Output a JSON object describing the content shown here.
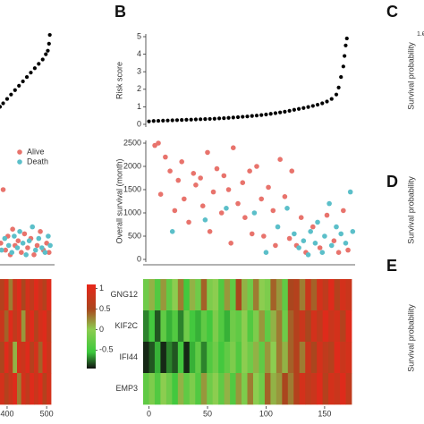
{
  "chart_data": [
    {
      "type": "scatter",
      "x": [
        382,
        390,
        400,
        410,
        420,
        430,
        440,
        450,
        460,
        470,
        480,
        490,
        498,
        503,
        506,
        508
      ],
      "values": [
        1.0,
        1.2,
        1.45,
        1.7,
        1.95,
        2.2,
        2.45,
        2.7,
        2.95,
        3.2,
        3.45,
        3.7,
        4.0,
        4.2,
        4.6,
        5.1
      ],
      "color": "#000000",
      "xlim": [
        382,
        511
      ],
      "ylim": [
        0,
        5
      ]
    },
    {
      "type": "scatter",
      "xlim": [
        382,
        511
      ],
      "ylim": [
        0,
        2500
      ],
      "series": [
        {
          "name": "Alive",
          "color": "#e8736c",
          "x": [
            384,
            390,
            396,
            402,
            408,
            414,
            420,
            428,
            436,
            444,
            452,
            460,
            468,
            476,
            484,
            492,
            500,
            506
          ],
          "values": [
            350,
            1500,
            200,
            500,
            100,
            650,
            300,
            400,
            150,
            550,
            250,
            450,
            100,
            300,
            600,
            200,
            350,
            150
          ]
        },
        {
          "name": "Death",
          "color": "#5bbfc9",
          "x": [
            386,
            394,
            404,
            412,
            418,
            426,
            432,
            440,
            448,
            456,
            464,
            472,
            480,
            488,
            496,
            504,
            509
          ],
          "values": [
            200,
            450,
            300,
            150,
            500,
            250,
            600,
            350,
            100,
            400,
            700,
            200,
            450,
            250,
            150,
            500,
            300
          ]
        }
      ]
    },
    {
      "type": "heatmap",
      "xlim": [
        382,
        511
      ],
      "xticks": [
        400,
        500
      ],
      "values": [
        [
          0.6,
          0.9,
          0.3,
          0.8,
          1,
          0.5,
          0.9,
          0.7,
          1,
          0.8,
          0.6,
          1
        ],
        [
          0.8,
          0.4,
          1,
          0.7,
          0.9,
          0.2,
          0.8,
          1,
          0.6,
          0.9,
          1,
          0.7
        ],
        [
          0.5,
          1,
          0.7,
          0.1,
          0.9,
          0.8,
          1,
          0.6,
          0.9,
          0.4,
          1,
          0.8
        ],
        [
          0.9,
          0.6,
          0.8,
          1,
          0.3,
          0.9,
          0.7,
          1,
          0.8,
          1,
          0.6,
          0.9
        ]
      ]
    },
    {
      "type": "scatter",
      "panel": "B",
      "ylabel": "Risk score",
      "color": "#000000",
      "xlim": [
        -5,
        173
      ],
      "ylim": [
        0,
        5
      ],
      "yticks": [
        0,
        1,
        2,
        3,
        4,
        5
      ],
      "x": [
        0,
        4,
        8,
        12,
        16,
        20,
        24,
        28,
        32,
        36,
        40,
        44,
        48,
        52,
        56,
        60,
        64,
        68,
        72,
        76,
        80,
        84,
        88,
        92,
        96,
        100,
        104,
        108,
        112,
        116,
        120,
        124,
        128,
        132,
        136,
        140,
        144,
        148,
        152,
        156,
        160,
        162,
        164,
        166,
        167,
        168,
        169
      ],
      "values": [
        0.17,
        0.19,
        0.2,
        0.21,
        0.22,
        0.23,
        0.24,
        0.25,
        0.26,
        0.27,
        0.28,
        0.29,
        0.3,
        0.31,
        0.32,
        0.34,
        0.35,
        0.37,
        0.39,
        0.41,
        0.43,
        0.45,
        0.48,
        0.5,
        0.53,
        0.56,
        0.6,
        0.64,
        0.68,
        0.72,
        0.77,
        0.83,
        0.88,
        0.93,
        0.99,
        1.05,
        1.12,
        1.2,
        1.3,
        1.45,
        1.7,
        2.1,
        2.7,
        3.3,
        3.9,
        4.5,
        4.9
      ]
    },
    {
      "type": "scatter",
      "ylabel": "Overall survival (month)",
      "xlim": [
        -5,
        173
      ],
      "ylim": [
        0,
        2500
      ],
      "yticks": [
        0,
        500,
        1000,
        1500,
        2000,
        2500
      ],
      "series": [
        {
          "color": "#e8736c",
          "x": [
            5,
            8,
            10,
            14,
            18,
            22,
            25,
            28,
            30,
            34,
            38,
            40,
            44,
            46,
            50,
            52,
            55,
            58,
            62,
            64,
            68,
            70,
            72,
            76,
            80,
            82,
            86,
            88,
            92,
            96,
            98,
            102,
            106,
            108,
            112,
            116,
            120,
            122,
            126,
            130,
            134,
            140,
            146,
            152,
            158,
            162,
            166,
            170
          ],
          "values": [
            2450,
            2500,
            1400,
            2200,
            1900,
            1050,
            1700,
            2100,
            1300,
            800,
            1850,
            1600,
            1750,
            1150,
            2300,
            600,
            1450,
            1950,
            1000,
            1800,
            1500,
            350,
            2400,
            1200,
            1650,
            900,
            1900,
            550,
            2000,
            1300,
            500,
            1550,
            1050,
            300,
            2150,
            1350,
            450,
            1900,
            300,
            900,
            150,
            700,
            250,
            950,
            400,
            150,
            1050,
            200
          ]
        },
        {
          "color": "#5bbfc9",
          "x": [
            20,
            48,
            66,
            90,
            100,
            110,
            118,
            124,
            128,
            132,
            136,
            138,
            142,
            144,
            148,
            150,
            154,
            156,
            160,
            164,
            168,
            172,
            174
          ],
          "values": [
            600,
            850,
            1100,
            1000,
            150,
            700,
            1100,
            550,
            250,
            400,
            100,
            600,
            350,
            800,
            150,
            500,
            1200,
            300,
            700,
            550,
            350,
            1450,
            600
          ]
        }
      ]
    },
    {
      "type": "heatmap",
      "xlim": [
        -5,
        173
      ],
      "xticks": [
        0,
        50,
        100,
        150
      ],
      "categories": [
        "GNG12",
        "KIF2C",
        "IFI44",
        "EMP3"
      ],
      "zlim": [
        -0.95,
        1.1
      ],
      "zticks": [
        1,
        0.5,
        0,
        -0.5
      ],
      "values": [
        [
          -0.2,
          0.1,
          -0.4,
          0.2,
          -0.3,
          0,
          0.3,
          -0.5,
          0.1,
          -0.2,
          0.4,
          -0.1,
          0,
          -0.4,
          0.2,
          -0.3,
          0.5,
          0.1,
          -0.2,
          0.3,
          0,
          -0.1,
          0.4,
          0.2,
          -0.3,
          0.5,
          0.6,
          0.3,
          0.8,
          0.4,
          0.9,
          0.7,
          1,
          0.6,
          0.9,
          0.8
        ],
        [
          -0.7,
          -0.5,
          -0.8,
          -0.3,
          -0.6,
          -0.4,
          -0.7,
          -0.2,
          -0.5,
          -0.6,
          -0.3,
          -0.5,
          -0.1,
          -0.4,
          -0.6,
          -0.2,
          -0.3,
          0,
          -0.4,
          -0.1,
          0.2,
          -0.3,
          0.1,
          0.3,
          -0.2,
          0.4,
          0.6,
          0.8,
          0.5,
          0.9,
          0.7,
          1,
          0.8,
          0.9,
          0.6,
          1
        ],
        [
          -0.9,
          -0.8,
          -0.6,
          -0.9,
          -0.7,
          -0.8,
          -0.5,
          -0.9,
          -0.6,
          -0.3,
          -0.7,
          -0.4,
          -0.2,
          -0.5,
          -0.3,
          -0.1,
          -0.4,
          0,
          -0.2,
          0.1,
          -0.3,
          0.2,
          0,
          0.3,
          0.1,
          0.4,
          0.6,
          0.3,
          0.8,
          0.5,
          0.9,
          0.7,
          0.6,
          1,
          0.8,
          0.9
        ],
        [
          -0.3,
          -0.1,
          -0.4,
          0,
          -0.2,
          -0.5,
          0.1,
          -0.3,
          -0.1,
          -0.4,
          0.2,
          -0.2,
          0,
          -0.3,
          0.1,
          -0.4,
          0.2,
          -0.1,
          0.3,
          0,
          -0.2,
          0.4,
          0.1,
          0.2,
          0.5,
          0.3,
          0.6,
          0.9,
          0.7,
          0.8,
          1,
          0.6,
          0.9,
          0.8,
          1,
          0.7
        ]
      ]
    },
    {
      "type": "line",
      "panel": "C",
      "ylabel": "Survival probability",
      "ylim": [
        0,
        1
      ],
      "yticks": [
        {
          "value": 1,
          "label": "1.0"
        }
      ]
    },
    {
      "type": "line",
      "panel": "D",
      "ylabel": "Survival probability"
    },
    {
      "type": "line",
      "panel": "E",
      "ylabel": "Survival probability"
    }
  ]
}
